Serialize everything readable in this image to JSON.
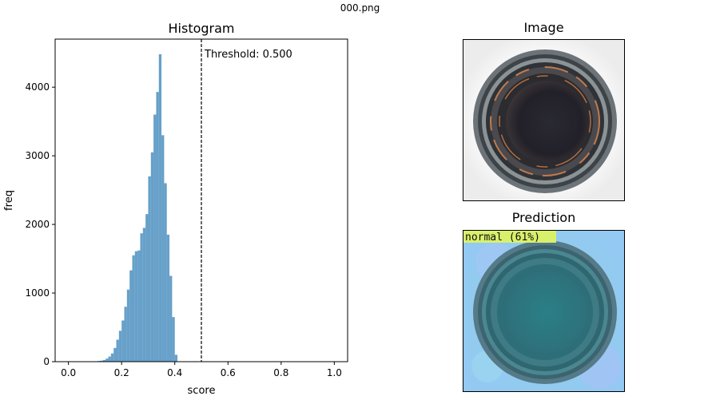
{
  "figure": {
    "suptitle": "000.png"
  },
  "chart_data": {
    "type": "bar",
    "title": "Histogram",
    "xlabel": "score",
    "ylabel": "freq",
    "xlim": [
      -0.05,
      1.05
    ],
    "ylim": [
      0,
      4700
    ],
    "xticks": [
      0.0,
      0.2,
      0.4,
      0.6,
      0.8,
      1.0
    ],
    "xtick_labels": [
      "0.0",
      "0.2",
      "0.4",
      "0.6",
      "0.8",
      "1.0"
    ],
    "yticks": [
      0,
      1000,
      2000,
      3000,
      4000
    ],
    "ytick_labels": [
      "0",
      "1000",
      "2000",
      "3000",
      "4000"
    ],
    "bar_color": "#4c8fbf",
    "bin_width": 0.01,
    "bin_starts": [
      0.1,
      0.11,
      0.12,
      0.13,
      0.14,
      0.15,
      0.16,
      0.17,
      0.18,
      0.19,
      0.2,
      0.21,
      0.22,
      0.23,
      0.24,
      0.25,
      0.26,
      0.27,
      0.28,
      0.29,
      0.3,
      0.31,
      0.32,
      0.33,
      0.34,
      0.35,
      0.36,
      0.37,
      0.38,
      0.39,
      0.4
    ],
    "values": [
      5,
      10,
      15,
      25,
      45,
      75,
      120,
      200,
      320,
      450,
      600,
      800,
      1050,
      1330,
      1550,
      1610,
      1620,
      1870,
      1950,
      2150,
      2700,
      3050,
      3600,
      3930,
      4480,
      3300,
      2600,
      1850,
      1250,
      650,
      100
    ],
    "threshold": {
      "value": 0.5,
      "label": "Threshold: 0.500",
      "style": "dashed"
    },
    "grid": false,
    "legend": "none"
  },
  "image_panel": {
    "title": "Image",
    "description_icon": "bottle-top-photo"
  },
  "prediction_panel": {
    "title": "Prediction",
    "label": "normal (61%)",
    "label_bg": "#d9f06b"
  }
}
